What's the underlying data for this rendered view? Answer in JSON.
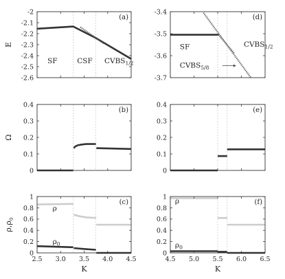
{
  "chart_data": [
    {
      "panel_label": "(a)",
      "type": "line",
      "ylabel": "E",
      "xlim": [
        2.5,
        4.5
      ],
      "ylim": [
        -2.6,
        -2.0
      ],
      "xticks": [
        2.5,
        3.0,
        3.5,
        4.0,
        4.5
      ],
      "yticks": [
        -2.0,
        -2.1,
        -2.2,
        -2.3,
        -2.4,
        -2.5,
        -2.6
      ],
      "ytick_labels": [
        "-2",
        "-2.1",
        "-2.2",
        "-2.3",
        "-2.4",
        "-2.5",
        "-2.6"
      ],
      "phase_boundaries": [
        3.27,
        3.75
      ],
      "annotations": [
        {
          "text": "SF",
          "x": 2.72,
          "y": -2.47
        },
        {
          "text": "CSF",
          "x": 3.35,
          "y": -2.47
        },
        {
          "text": "CVBS",
          "sub": "1/2",
          "x": 3.93,
          "y": -2.47
        }
      ],
      "series": [
        {
          "style": "thick-dark",
          "x": [
            2.5,
            3.27,
            3.75,
            4.5
          ],
          "y": [
            -2.155,
            -2.135,
            -2.24,
            -2.43
          ]
        },
        {
          "style": "dotted",
          "x": [
            3.42,
            3.92
          ],
          "y": [
            -2.14,
            -2.29
          ]
        }
      ]
    },
    {
      "panel_label": "(d)",
      "type": "line",
      "xlim": [
        4.5,
        6.5
      ],
      "ylim": [
        -3.7,
        -3.4
      ],
      "xticks": [
        4.5,
        5.0,
        5.5,
        6.0,
        6.5
      ],
      "yticks": [
        -3.4,
        -3.5,
        -3.6,
        -3.7
      ],
      "ytick_labels": [
        "-3.4",
        "-3.5",
        "-3.6",
        "-3.7"
      ],
      "phase_boundaries": [
        5.5,
        5.7
      ],
      "annotations": [
        {
          "text": "SF",
          "x": 4.7,
          "y": -3.57
        },
        {
          "text": "CVBS",
          "sub": "1/2",
          "x": 6.05,
          "y": -3.56
        },
        {
          "text": "CVBS",
          "sub": "5/8",
          "x": 4.7,
          "y": -3.655,
          "arrow": true
        }
      ],
      "series": [
        {
          "style": "thick-dark",
          "x": [
            4.5,
            5.52
          ],
          "y": [
            -3.505,
            -3.505
          ]
        },
        {
          "style": "dotted",
          "x": [
            5.2,
            6.2
          ],
          "y": [
            -3.405,
            -3.7
          ]
        },
        {
          "style": "dotted",
          "x": [
            5.52,
            5.85
          ],
          "y": [
            -3.505,
            -3.59
          ]
        }
      ]
    },
    {
      "panel_label": "(b)",
      "type": "scatter",
      "ylabel": "Ω",
      "xlim": [
        2.5,
        4.5
      ],
      "ylim": [
        0,
        0.4
      ],
      "xticks": [
        2.5,
        3.0,
        3.5,
        4.0,
        4.5
      ],
      "yticks": [
        0,
        0.1,
        0.2,
        0.3,
        0.4
      ],
      "ytick_labels": [
        "0",
        "0.1",
        "0.2",
        "0.3",
        "0.4"
      ],
      "phase_boundaries": [
        3.27,
        3.75
      ],
      "series": [
        {
          "style": "thick-dark",
          "x": [
            2.5,
            3.27
          ],
          "y": [
            0.0,
            0.0
          ]
        },
        {
          "style": "thick-dark",
          "x": [
            3.28,
            3.31,
            3.36,
            3.45,
            3.55,
            3.75
          ],
          "y": [
            0.135,
            0.145,
            0.152,
            0.157,
            0.16,
            0.16
          ]
        },
        {
          "style": "thick-dark",
          "x": [
            3.76,
            4.5
          ],
          "y": [
            0.135,
            0.13
          ]
        }
      ]
    },
    {
      "panel_label": "(e)",
      "type": "scatter",
      "xlim": [
        4.5,
        6.5
      ],
      "ylim": [
        0,
        0.4
      ],
      "xticks": [
        4.5,
        5.0,
        5.5,
        6.0,
        6.5
      ],
      "yticks": [
        0,
        0.1,
        0.2,
        0.3,
        0.4
      ],
      "ytick_labels": [
        "0",
        "0.1",
        "0.2",
        "0.3",
        "0.4"
      ],
      "phase_boundaries": [
        5.5,
        5.7
      ],
      "series": [
        {
          "style": "thick-dark",
          "x": [
            4.5,
            5.5
          ],
          "y": [
            0.0,
            0.0
          ]
        },
        {
          "style": "thick-dark",
          "x": [
            5.5,
            5.7
          ],
          "y": [
            0.087,
            0.087
          ]
        },
        {
          "style": "thick-dark",
          "x": [
            5.7,
            6.5
          ],
          "y": [
            0.128,
            0.128
          ]
        }
      ]
    },
    {
      "panel_label": "(c)",
      "type": "scatter",
      "ylabel": "ρ,ρ",
      "ylabel_sub": "0",
      "xlabel": "K",
      "xlim": [
        2.5,
        4.5
      ],
      "ylim": [
        0,
        1
      ],
      "xticks": [
        2.5,
        3.0,
        3.5,
        4.0,
        4.5
      ],
      "xtick_labels": [
        "2.5",
        "3.0",
        "3.5",
        "4.0",
        "4.5"
      ],
      "yticks": [
        0,
        0.2,
        0.4,
        0.6,
        0.8,
        1.0
      ],
      "ytick_labels": [
        "0",
        "0.2",
        "0.4",
        "0.6",
        "0.8",
        "1"
      ],
      "phase_boundaries": [
        3.27,
        3.75
      ],
      "annotations": [
        {
          "text": "ρ",
          "x": 2.83,
          "y": 0.75
        },
        {
          "text": "ρ",
          "sub": "0",
          "x": 2.83,
          "y": 0.16
        }
      ],
      "series": [
        {
          "name": "ρ",
          "style": "thick-light",
          "x": [
            2.5,
            3.27
          ],
          "y": [
            0.86,
            0.87
          ]
        },
        {
          "name": "ρ",
          "style": "thick-light",
          "x": [
            3.28,
            3.4,
            3.55,
            3.75
          ],
          "y": [
            0.68,
            0.65,
            0.63,
            0.62
          ]
        },
        {
          "name": "ρ",
          "style": "thick-light",
          "x": [
            3.76,
            4.5
          ],
          "y": [
            0.5,
            0.5
          ]
        },
        {
          "name": "ρ0",
          "style": "thick-dark",
          "x": [
            2.5,
            3.27
          ],
          "y": [
            0.12,
            0.1
          ]
        },
        {
          "name": "ρ0",
          "style": "thick-dark",
          "x": [
            3.28,
            3.5,
            3.75
          ],
          "y": [
            0.085,
            0.07,
            0.055
          ]
        },
        {
          "name": "ρ0",
          "style": "thick-dark",
          "x": [
            3.76,
            4.5
          ],
          "y": [
            0.0,
            0.0
          ]
        }
      ]
    },
    {
      "panel_label": "(f)",
      "type": "scatter",
      "xlabel": "K",
      "xlim": [
        4.5,
        6.5
      ],
      "ylim": [
        0,
        1
      ],
      "xticks": [
        4.5,
        5.0,
        5.5,
        6.0,
        6.5
      ],
      "xtick_labels": [
        "4.5",
        "5.0",
        "5.5",
        "6.0",
        "6.5"
      ],
      "yticks": [
        0,
        0.2,
        0.4,
        0.6,
        0.8,
        1.0
      ],
      "ytick_labels": [
        "0",
        "0.2",
        "0.4",
        "0.6",
        "0.8",
        "1"
      ],
      "phase_boundaries": [
        5.5,
        5.7
      ],
      "annotations": [
        {
          "text": "ρ",
          "x": 4.6,
          "y": 0.88
        },
        {
          "text": "ρ",
          "sub": "0",
          "x": 4.6,
          "y": 0.1
        }
      ],
      "series": [
        {
          "name": "ρ",
          "style": "thick-light",
          "x": [
            4.5,
            5.5
          ],
          "y": [
            0.97,
            0.97
          ]
        },
        {
          "name": "ρ",
          "style": "thick-light",
          "x": [
            5.5,
            5.7
          ],
          "y": [
            0.62,
            0.62
          ]
        },
        {
          "name": "ρ",
          "style": "thick-light",
          "x": [
            5.7,
            6.5
          ],
          "y": [
            0.5,
            0.5
          ]
        },
        {
          "name": "ρ0",
          "style": "thick-dark",
          "x": [
            4.5,
            5.5
          ],
          "y": [
            0.03,
            0.03
          ]
        },
        {
          "name": "ρ0",
          "style": "thick-dark",
          "x": [
            5.5,
            5.7
          ],
          "y": [
            0.02,
            0.02
          ]
        },
        {
          "name": "ρ0",
          "style": "thick-dark",
          "x": [
            5.7,
            6.5
          ],
          "y": [
            0.0,
            0.0
          ]
        }
      ]
    }
  ],
  "colors": {
    "dark_series": "#333333",
    "light_series": "#cccccc",
    "dotted_series": "#555555",
    "boundary_line": "#bbbbbb"
  }
}
